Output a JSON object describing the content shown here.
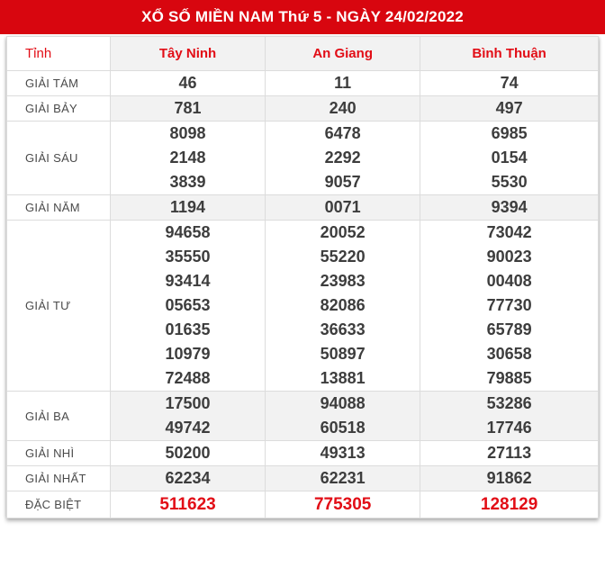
{
  "title": "XỔ SỐ MIỀN NAM Thứ 5 - NGÀY 24/02/2022",
  "colors": {
    "banner_red": "#d8060f",
    "accent_red": "#e20d16",
    "shaded_row_bg": "#f2f2f2",
    "number_text": "#3d3d3d",
    "border": "#dcdcdc"
  },
  "table": {
    "header": {
      "label": "Tỉnh",
      "provinces": [
        "Tây Ninh",
        "An Giang",
        "Bình Thuận"
      ]
    },
    "rows": [
      {
        "label": "GIẢI TÁM",
        "shaded": false,
        "special": false,
        "values": [
          [
            "46"
          ],
          [
            "11"
          ],
          [
            "74"
          ]
        ]
      },
      {
        "label": "GIẢI BẢY",
        "shaded": true,
        "special": false,
        "values": [
          [
            "781"
          ],
          [
            "240"
          ],
          [
            "497"
          ]
        ]
      },
      {
        "label": "GIẢI SÁU",
        "shaded": false,
        "special": false,
        "values": [
          [
            "8098",
            "2148",
            "3839"
          ],
          [
            "6478",
            "2292",
            "9057"
          ],
          [
            "6985",
            "0154",
            "5530"
          ]
        ]
      },
      {
        "label": "GIẢI NĂM",
        "shaded": true,
        "special": false,
        "values": [
          [
            "1194"
          ],
          [
            "0071"
          ],
          [
            "9394"
          ]
        ]
      },
      {
        "label": "GIẢI TƯ",
        "shaded": false,
        "special": false,
        "values": [
          [
            "94658",
            "35550",
            "93414",
            "05653",
            "01635",
            "10979",
            "72488"
          ],
          [
            "20052",
            "55220",
            "23983",
            "82086",
            "36633",
            "50897",
            "13881"
          ],
          [
            "73042",
            "90023",
            "00408",
            "77730",
            "65789",
            "30658",
            "79885"
          ]
        ]
      },
      {
        "label": "GIẢI BA",
        "shaded": true,
        "special": false,
        "values": [
          [
            "17500",
            "49742"
          ],
          [
            "94088",
            "60518"
          ],
          [
            "53286",
            "17746"
          ]
        ]
      },
      {
        "label": "GIẢI NHÌ",
        "shaded": false,
        "special": false,
        "values": [
          [
            "50200"
          ],
          [
            "49313"
          ],
          [
            "27113"
          ]
        ]
      },
      {
        "label": "GIẢI NHẤT",
        "shaded": true,
        "special": false,
        "values": [
          [
            "62234"
          ],
          [
            "62231"
          ],
          [
            "91862"
          ]
        ]
      },
      {
        "label": "ĐẶC BIỆT",
        "shaded": false,
        "special": true,
        "values": [
          [
            "511623"
          ],
          [
            "775305"
          ],
          [
            "128129"
          ]
        ]
      }
    ]
  }
}
